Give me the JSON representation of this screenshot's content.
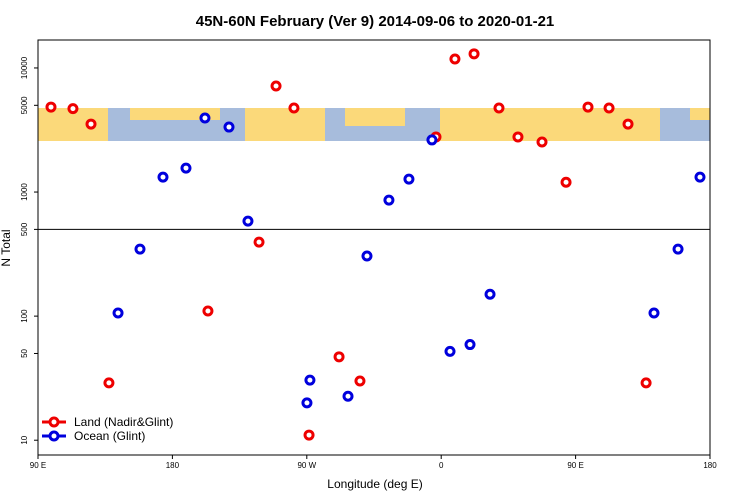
{
  "chart_data": {
    "type": "scatter",
    "title": "45N-60N February (Ver 9)   2014-09-06 to 2020-01-21",
    "xlabel": "Longitude (deg E)",
    "ylabel": "N Total",
    "xlim": [
      90,
      540
    ],
    "ylim": [
      7.6,
      16800
    ],
    "ylog": true,
    "hline": 500,
    "xticks": [
      {
        "value": 90,
        "label": "90 E"
      },
      {
        "value": 180,
        "label": "180"
      },
      {
        "value": 270,
        "label": "90 W"
      },
      {
        "value": 360,
        "label": "0"
      },
      {
        "value": 450,
        "label": "90 E"
      },
      {
        "value": 540,
        "label": "180"
      }
    ],
    "yticks": [
      10,
      50,
      100,
      500,
      1000,
      5000,
      10000
    ],
    "legend": "bottom-left",
    "series": [
      {
        "name": "Land (Nadir&Glint)",
        "color": "#ee0000",
        "x": [
          98.7,
          113.4,
          125.5,
          137.5,
          203.8,
          238,
          249.4,
          261.4,
          271.5,
          291.6,
          305.6,
          356.5,
          369.2,
          382,
          398.7,
          411.4,
          427.5,
          443.6,
          458.3,
          472.4,
          485.1,
          497.2
        ],
        "values": [
          4840,
          4700,
          3530,
          29,
          110,
          395,
          7160,
          4760,
          11,
          47,
          30,
          2780,
          11800,
          13000,
          4760,
          2780,
          2530,
          1200,
          4840,
          4760,
          3530,
          29
        ]
      },
      {
        "name": "Ocean (Glint)",
        "color": "#0000dd",
        "x": [
          143.6,
          158.3,
          173.7,
          189.1,
          201.8,
          217.9,
          230.6,
          270.1,
          272.1,
          297.6,
          310.3,
          325,
          338.4,
          353.8,
          365.9,
          379.3,
          392.7,
          502.5,
          518.6,
          533.3
        ],
        "values": [
          106,
          347,
          1320,
          1560,
          3950,
          3340,
          583,
          20,
          30.5,
          22.6,
          305,
          861,
          1270,
          2630,
          52,
          59,
          150,
          106,
          347,
          1320
        ]
      }
    ]
  }
}
